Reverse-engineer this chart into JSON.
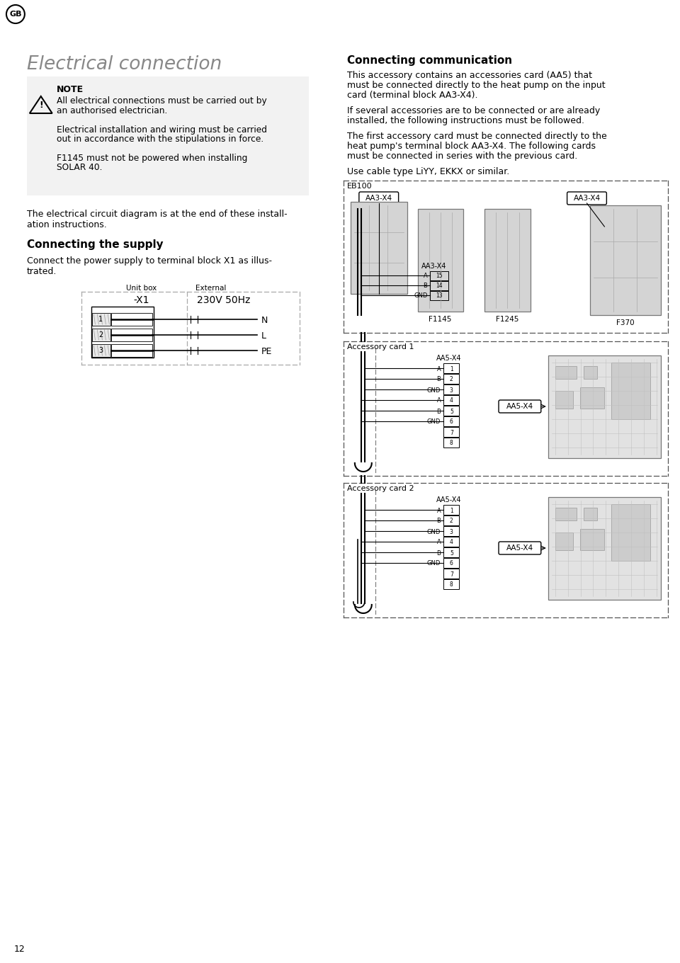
{
  "bg_color": "#ffffff",
  "page_number": "12",
  "gb_label": "GB",
  "title_left": "Electrical connection",
  "title_right": "Connecting communication",
  "note_title": "NOTE",
  "note_line1a": "All electrical connections must be carried out by",
  "note_line1b": "an authorised electrician.",
  "note_line2a": "Electrical installation and wiring must be carried",
  "note_line2b": "out in accordance with the stipulations in force.",
  "note_line3a": "F1145 must not be powered when installing",
  "note_line3b": "SOLAR 40.",
  "para_l1a": "The electrical circuit diagram is at the end of these install-",
  "para_l1b": "ation instructions.",
  "section_supply": "Connecting the supply",
  "para_s1": "Connect the power supply to terminal block X1 as illus-",
  "para_s2": "trated.",
  "unit_box_lbl": "Unit box",
  "external_lbl": "External",
  "x1_lbl": "-X1",
  "voltage_lbl": "230V 50Hz",
  "term_nums": [
    "1",
    "2",
    "3"
  ],
  "term_names": [
    "N",
    "L",
    "PE"
  ],
  "title_right_str": "Connecting communication",
  "rp1a": "This accessory contains an accessories card (AA5) that",
  "rp1b": "must be connected directly to the heat pump on the input",
  "rp1c": "card (terminal block AA3-X4).",
  "rp2a": "If several accessories are to be connected or are already",
  "rp2b": "installed, the following instructions must be followed.",
  "rp3a": "The first accessory card must be connected directly to the",
  "rp3b": "heat pump's terminal block AA3-X4. The following cards",
  "rp3c": "must be connected in series with the previous card.",
  "rp4": "Use cable type LiYY, EKKX or similar.",
  "eb100": "EB100",
  "aa3x4": "AA3-X4",
  "f1145": "F1145",
  "f1245": "F1245",
  "f370": "F370",
  "acc1_lbl": "Accessory card 1",
  "acc2_lbl": "Accessory card 2",
  "aa5x4": "AA5-X4",
  "aa3_nums": [
    "15",
    "14",
    "13"
  ],
  "aa3_labs": [
    "A",
    "B",
    "GND"
  ],
  "aa5_nums": [
    "1",
    "2",
    "3",
    "4",
    "5",
    "6",
    "7",
    "8"
  ],
  "aa5_labs": [
    "A",
    "B",
    "GND",
    "A",
    "B",
    "GND",
    "",
    ""
  ]
}
